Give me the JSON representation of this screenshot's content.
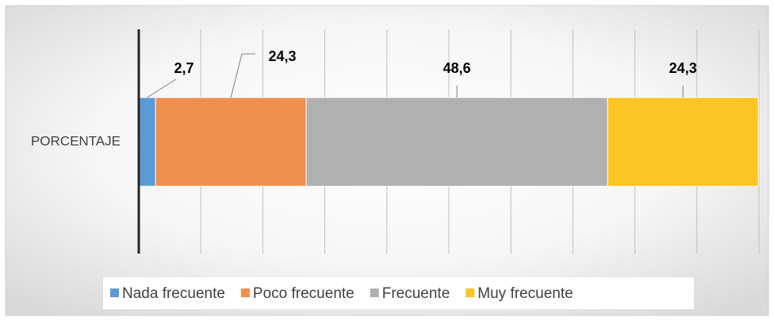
{
  "chart_data": {
    "type": "stacked-bar-horizontal",
    "categories": [
      "PORCENTAJE"
    ],
    "series": [
      {
        "name": "Nada frecuente",
        "color": "#5b9bd5",
        "values": [
          2.7
        ],
        "value_labels": [
          "2,7"
        ]
      },
      {
        "name": "Poco frecuente",
        "color": "#f0904f",
        "values": [
          24.3
        ],
        "value_labels": [
          "24,3"
        ]
      },
      {
        "name": "Frecuente",
        "color": "#b0b0b0",
        "values": [
          48.6
        ],
        "value_labels": [
          "48,6"
        ]
      },
      {
        "name": "Muy frecuente",
        "color": "#fdc425",
        "values": [
          24.3
        ],
        "value_labels": [
          "24,3"
        ]
      }
    ],
    "xlim": [
      0,
      100
    ],
    "xticks": [
      0,
      10,
      20,
      30,
      40,
      50,
      60,
      70,
      80,
      90,
      100
    ],
    "grid": true,
    "legend": "bottom"
  }
}
